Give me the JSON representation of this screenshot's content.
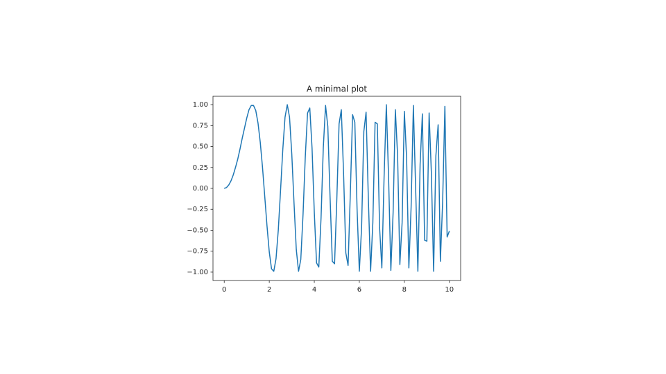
{
  "chart_data": {
    "type": "line",
    "title": "A minimal plot",
    "x": [
      0,
      0.1,
      0.2,
      0.3,
      0.4,
      0.5,
      0.6,
      0.7,
      0.8,
      0.9,
      1,
      1.1,
      1.2,
      1.3,
      1.4,
      1.5,
      1.6,
      1.7,
      1.8,
      1.9,
      2,
      2.1,
      2.2,
      2.3,
      2.4,
      2.5,
      2.6,
      2.7,
      2.8,
      2.9,
      3,
      3.1,
      3.2,
      3.3,
      3.4,
      3.5,
      3.6,
      3.7,
      3.8,
      3.9,
      4,
      4.1,
      4.2,
      4.3,
      4.4,
      4.5,
      4.6,
      4.7,
      4.8,
      4.9,
      5,
      5.1,
      5.2,
      5.3,
      5.4,
      5.5,
      5.6,
      5.7,
      5.8,
      5.9,
      6,
      6.1,
      6.2,
      6.3,
      6.4,
      6.5,
      6.6,
      6.7,
      6.8,
      6.9,
      7,
      7.1,
      7.2,
      7.3,
      7.4,
      7.5,
      7.6,
      7.7,
      7.8,
      7.9,
      8,
      8.1,
      8.2,
      8.3,
      8.4,
      8.5,
      8.6,
      8.7,
      8.8,
      8.9,
      9,
      9.1,
      9.2,
      9.3,
      9.4,
      9.5,
      9.6,
      9.7,
      9.8,
      9.9,
      10
    ],
    "series": [
      {
        "color": "#1f77b4",
        "values": [
          0,
          0.01,
          0.04,
          0.09,
          0.16,
          0.25,
          0.35,
          0.47,
          0.6,
          0.72,
          0.84,
          0.94,
          0.99,
          0.99,
          0.93,
          0.78,
          0.55,
          0.25,
          -0.1,
          -0.45,
          -0.76,
          -0.96,
          -0.99,
          -0.84,
          -0.5,
          -0.03,
          0.46,
          0.85,
          1,
          0.85,
          0.41,
          -0.18,
          -0.73,
          -0.99,
          -0.85,
          -0.31,
          0.38,
          0.9,
          0.96,
          0.48,
          -0.29,
          -0.89,
          -0.94,
          -0.35,
          0.49,
          0.99,
          0.74,
          -0.1,
          -0.87,
          -0.9,
          -0.13,
          0.77,
          0.94,
          0.18,
          -0.77,
          -0.92,
          -0.06,
          0.88,
          0.79,
          -0.25,
          -0.99,
          -0.47,
          0.68,
          0.91,
          -0.12,
          -0.99,
          -0.41,
          0.79,
          0.77,
          -0.47,
          -0.95,
          0.14,
          1,
          0.12,
          -0.98,
          -0.29,
          0.94,
          0.39,
          -0.91,
          -0.41,
          0.92,
          0.36,
          -0.95,
          -0.22,
          0.99,
          0.01,
          -0.99,
          0.29,
          0.89,
          -0.62,
          -0.63,
          0.9,
          0.18,
          -0.99,
          0.39,
          0.76,
          -0.87,
          -0.16,
          0.98,
          -0.58,
          -0.51
        ]
      }
    ],
    "xlim": [
      -0.5,
      10.5
    ],
    "ylim": [
      -1.1,
      1.1
    ],
    "xticks": [
      0,
      2,
      4,
      6,
      8,
      10
    ],
    "yticks": [
      {
        "value": -1,
        "label": "−1.00"
      },
      {
        "value": -0.75,
        "label": "−0.75"
      },
      {
        "value": -0.5,
        "label": "−0.50"
      },
      {
        "value": -0.25,
        "label": "−0.25"
      },
      {
        "value": 0,
        "label": "0.00"
      },
      {
        "value": 0.25,
        "label": "0.25"
      },
      {
        "value": 0.5,
        "label": "0.50"
      },
      {
        "value": 0.75,
        "label": "0.75"
      },
      {
        "value": 1,
        "label": "1.00"
      }
    ],
    "grid": false
  }
}
